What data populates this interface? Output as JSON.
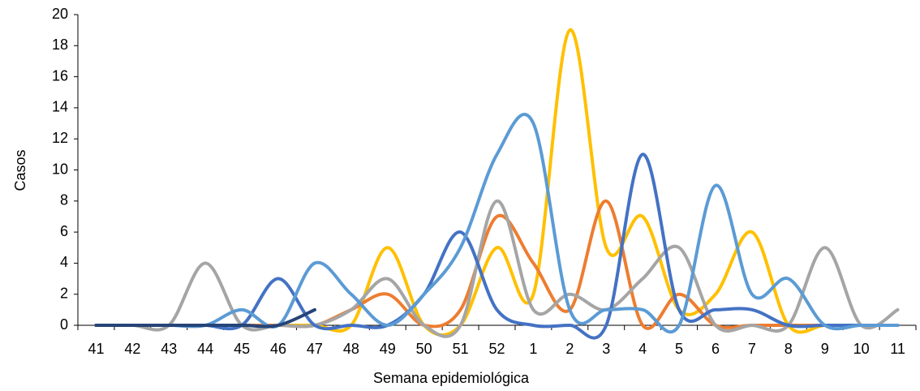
{
  "chart_data": {
    "type": "line",
    "smooth": true,
    "x_label": "Semana epidemiológica",
    "y_label": "Casos",
    "categories": [
      "41",
      "42",
      "43",
      "44",
      "45",
      "46",
      "47",
      "48",
      "49",
      "50",
      "51",
      "52",
      "1",
      "2",
      "3",
      "4",
      "5",
      "6",
      "7",
      "8",
      "9",
      "10",
      "11"
    ],
    "ylim": [
      0,
      20
    ],
    "yticks": [
      0,
      2,
      4,
      6,
      8,
      10,
      12,
      14,
      16,
      18,
      20
    ],
    "grid": false,
    "series": [
      {
        "color": "#ffc000",
        "values": [
          0,
          0,
          0,
          0,
          0,
          0,
          0,
          0,
          5,
          0,
          0,
          5,
          2,
          19,
          5,
          7,
          1,
          2,
          6,
          0,
          0,
          0,
          0
        ]
      },
      {
        "color": "#ed7d31",
        "values": [
          0,
          0,
          0,
          0,
          0,
          0,
          0,
          1,
          2,
          0,
          1,
          7,
          4,
          1,
          8,
          0,
          2,
          0,
          0,
          0,
          0,
          0,
          0
        ]
      },
      {
        "color": "#a5a5a5",
        "values": [
          0,
          0,
          0,
          4,
          0,
          0,
          0,
          1,
          3,
          0,
          0,
          8,
          1,
          2,
          1,
          3,
          5,
          0,
          0,
          0,
          5,
          0,
          1
        ]
      },
      {
        "color": "#4472c4",
        "values": [
          0,
          0,
          0,
          0,
          0,
          3,
          0,
          0,
          0,
          2,
          6,
          1,
          0,
          0,
          0,
          11,
          1,
          1,
          1,
          0,
          0,
          0,
          0
        ]
      },
      {
        "color": "#5b9bd5",
        "values": [
          0,
          0,
          0,
          0,
          1,
          0,
          4,
          2,
          0,
          2,
          5,
          11,
          13,
          1,
          1,
          1,
          0,
          9,
          2,
          3,
          0,
          0,
          0
        ]
      },
      {
        "color": "#264478",
        "values": [
          0,
          0,
          0,
          0,
          0,
          0,
          1,
          null,
          null,
          null,
          null,
          null,
          null,
          null,
          null,
          null,
          null,
          null,
          null,
          null,
          null,
          null,
          null
        ]
      }
    ]
  }
}
